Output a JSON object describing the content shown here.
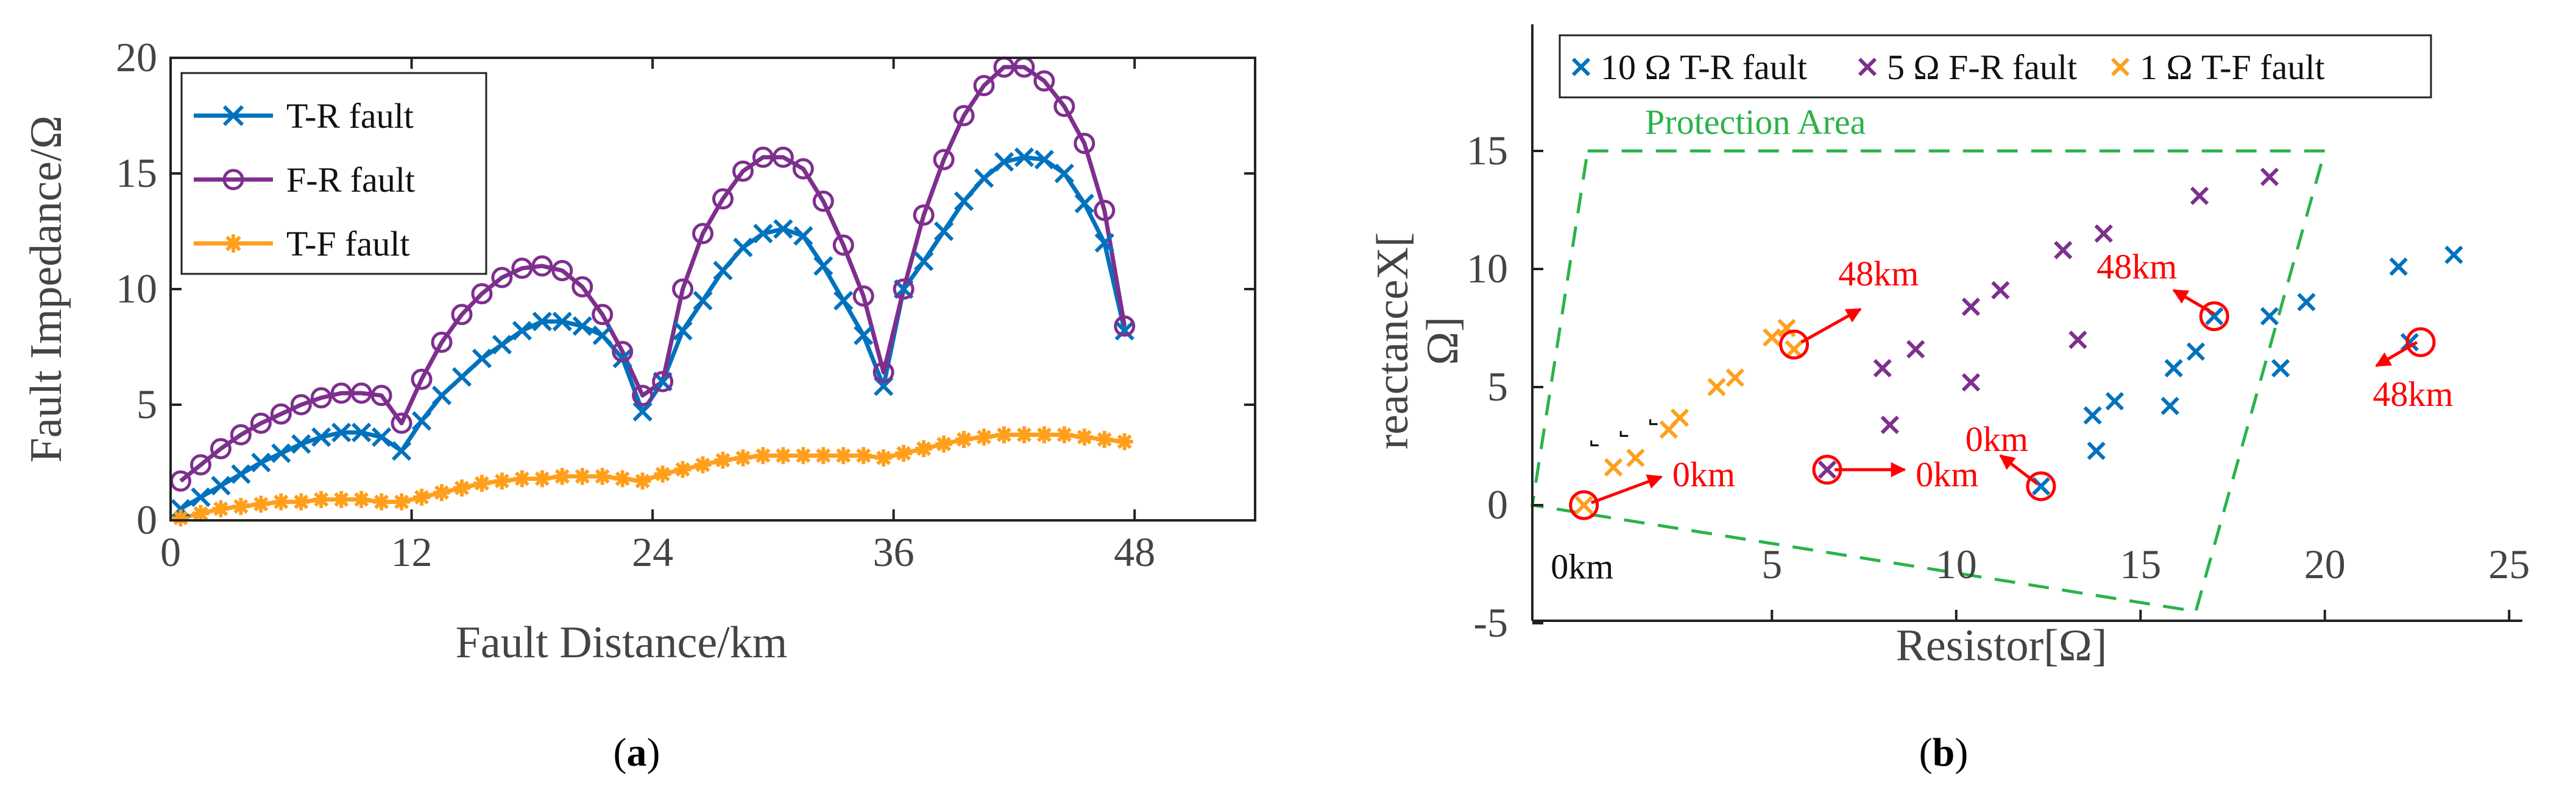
{
  "chart_data": [
    {
      "type": "line",
      "panel": "(a)",
      "panel_prefix": "(",
      "panel_letter": "a",
      "panel_suffix": ")",
      "xlabel": "Fault Distance/km",
      "ylabel": "Fault Impedance/Ω",
      "xlim": [
        0,
        54
      ],
      "ylim": [
        0,
        20
      ],
      "xticks": [
        0,
        12,
        24,
        36,
        48
      ],
      "yticks": [
        0,
        5,
        10,
        15,
        20
      ],
      "legend_position": "top-left",
      "x": [
        0.5,
        1.5,
        2.5,
        3.5,
        4.5,
        5.5,
        6.5,
        7.5,
        8.5,
        9.5,
        10.5,
        11.5,
        12.5,
        13.5,
        14.5,
        15.5,
        16.5,
        17.5,
        18.5,
        19.5,
        20.5,
        21.5,
        22.5,
        23.5,
        24.5,
        25.5,
        26.5,
        27.5,
        28.5,
        29.5,
        30.5,
        31.5,
        32.5,
        33.5,
        34.5,
        35.5,
        36.5,
        37.5,
        38.5,
        39.5,
        40.5,
        41.5,
        42.5,
        43.5,
        44.5,
        45.5,
        46.5,
        47.5
      ],
      "series": [
        {
          "name": "T-R fault",
          "color": "#0072bd",
          "marker": "x",
          "values": [
            0.5,
            1.0,
            1.5,
            2.0,
            2.5,
            2.9,
            3.3,
            3.6,
            3.8,
            3.8,
            3.6,
            3.0,
            4.3,
            5.4,
            6.2,
            7.0,
            7.6,
            8.2,
            8.6,
            8.6,
            8.4,
            8.0,
            7.0,
            4.7,
            6.0,
            8.2,
            9.5,
            10.8,
            11.8,
            12.4,
            12.6,
            12.3,
            11.0,
            9.5,
            8.0,
            5.8,
            10.0,
            11.2,
            12.5,
            13.8,
            14.8,
            15.5,
            15.7,
            15.6,
            15.0,
            13.7,
            12.0,
            8.2
          ]
        },
        {
          "name": "F-R fault",
          "color": "#7e2f8e",
          "marker": "o",
          "values": [
            1.7,
            2.4,
            3.1,
            3.7,
            4.2,
            4.6,
            5.0,
            5.3,
            5.5,
            5.5,
            5.4,
            4.2,
            6.1,
            7.7,
            8.9,
            9.8,
            10.5,
            10.9,
            11.0,
            10.8,
            10.1,
            8.9,
            7.3,
            5.4,
            6.0,
            10.0,
            12.4,
            13.9,
            15.1,
            15.7,
            15.7,
            15.2,
            13.8,
            11.9,
            9.7,
            6.4,
            10.0,
            13.2,
            15.6,
            17.5,
            18.8,
            19.6,
            19.6,
            19.0,
            17.9,
            16.3,
            13.4,
            8.4
          ]
        },
        {
          "name": "T-F fault",
          "color": "#ff9f1c",
          "marker": "*",
          "values": [
            0.1,
            0.3,
            0.5,
            0.6,
            0.7,
            0.8,
            0.8,
            0.9,
            0.9,
            0.9,
            0.8,
            0.8,
            1.0,
            1.2,
            1.4,
            1.6,
            1.7,
            1.8,
            1.8,
            1.9,
            1.9,
            1.9,
            1.8,
            1.7,
            2.0,
            2.2,
            2.4,
            2.6,
            2.7,
            2.8,
            2.8,
            2.8,
            2.8,
            2.8,
            2.8,
            2.7,
            2.9,
            3.1,
            3.3,
            3.5,
            3.6,
            3.7,
            3.7,
            3.7,
            3.7,
            3.6,
            3.5,
            3.4
          ]
        }
      ]
    },
    {
      "type": "scatter",
      "panel": "(b)",
      "panel_prefix": "(",
      "panel_letter": "b",
      "panel_suffix": ")",
      "xlabel": "Resistor[Ω]",
      "ylabel_top": "reactanceX[",
      "ylabel_bottom": "Ω]",
      "xlim": [
        -1.5,
        25
      ],
      "ylim": [
        -5,
        20
      ],
      "xticks": [
        5,
        10,
        15,
        20,
        25
      ],
      "yticks": [
        -5,
        0,
        5,
        10,
        15
      ],
      "legend_position": "top",
      "protection_area_label": "Protection Area",
      "protection_area": [
        [
          0,
          15
        ],
        [
          20,
          15
        ],
        [
          16.5,
          -4.5
        ],
        [
          -1.5,
          0
        ]
      ],
      "series": [
        {
          "name": "10 Ω T-R fault",
          "color": "#0072bd",
          "marker": "x",
          "points": [
            [
              12.3,
              0.8
            ],
            [
              13.8,
              2.3
            ],
            [
              13.7,
              3.8
            ],
            [
              14.3,
              4.4
            ],
            [
              15.8,
              4.2
            ],
            [
              15.9,
              5.8
            ],
            [
              16.5,
              6.5
            ],
            [
              17.0,
              8.0
            ],
            [
              18.5,
              8.0
            ],
            [
              19.5,
              8.6
            ],
            [
              18.8,
              5.8
            ],
            [
              22.3,
              6.9
            ],
            [
              22.0,
              10.1
            ],
            [
              23.5,
              10.6
            ]
          ]
        },
        {
          "name": "5 Ω F-R fault",
          "color": "#7e2f8e",
          "marker": "x",
          "points": [
            [
              6.5,
              1.5
            ],
            [
              8.2,
              3.4
            ],
            [
              8.0,
              5.8
            ],
            [
              8.9,
              6.6
            ],
            [
              10.4,
              8.4
            ],
            [
              10.4,
              5.2
            ],
            [
              11.2,
              9.1
            ],
            [
              12.9,
              10.8
            ],
            [
              13.3,
              7.0
            ],
            [
              14.0,
              11.5
            ],
            [
              16.6,
              13.1
            ],
            [
              18.5,
              13.9
            ]
          ]
        },
        {
          "name": "1 Ω T-F fault",
          "color": "#ff9f1c",
          "marker": "x",
          "points": [
            [
              -0.1,
              0.0
            ],
            [
              0.7,
              1.6
            ],
            [
              1.3,
              2.0
            ],
            [
              2.2,
              3.2
            ],
            [
              2.5,
              3.7
            ],
            [
              3.5,
              5.0
            ],
            [
              4.0,
              5.4
            ],
            [
              5.0,
              7.1
            ],
            [
              5.6,
              6.6
            ],
            [
              5.4,
              7.5
            ]
          ]
        }
      ],
      "circled_points": [
        [
          -0.1,
          0.0
        ],
        [
          5.6,
          6.8
        ],
        [
          6.5,
          1.5
        ],
        [
          12.3,
          0.8
        ],
        [
          17.0,
          8.0
        ],
        [
          22.6,
          6.9
        ]
      ],
      "annotations": [
        {
          "text": "48km",
          "arrow_from": [
            5.8,
            6.9
          ],
          "arrow_to": [
            7.4,
            8.3
          ],
          "label_at": [
            6.8,
            9.3
          ],
          "anchor": "start"
        },
        {
          "text": "48km",
          "arrow_from": [
            17.0,
            8.1
          ],
          "arrow_to": [
            15.9,
            9.1
          ],
          "label_at": [
            14.9,
            9.6
          ],
          "anchor": "middle"
        },
        {
          "text": "48km",
          "arrow_from": [
            22.5,
            6.9
          ],
          "arrow_to": [
            21.4,
            5.9
          ],
          "label_at": [
            21.3,
            4.2
          ],
          "anchor": "start"
        },
        {
          "text": "0km",
          "arrow_from": [
            0.1,
            0.1
          ],
          "arrow_to": [
            2.0,
            1.2
          ],
          "label_at": [
            2.3,
            0.8
          ],
          "anchor": "start"
        },
        {
          "text": "0km",
          "arrow_from": [
            6.7,
            1.5
          ],
          "arrow_to": [
            8.6,
            1.5
          ],
          "label_at": [
            8.9,
            0.8
          ],
          "anchor": "start"
        },
        {
          "text": "0km",
          "arrow_from": [
            12.2,
            0.9
          ],
          "arrow_to": [
            11.2,
            2.1
          ],
          "label_at": [
            11.1,
            2.3
          ],
          "anchor": "middle"
        }
      ],
      "text_labels": [
        {
          "text": "0km",
          "at": [
            -1.0,
            -3.1
          ]
        }
      ]
    }
  ]
}
